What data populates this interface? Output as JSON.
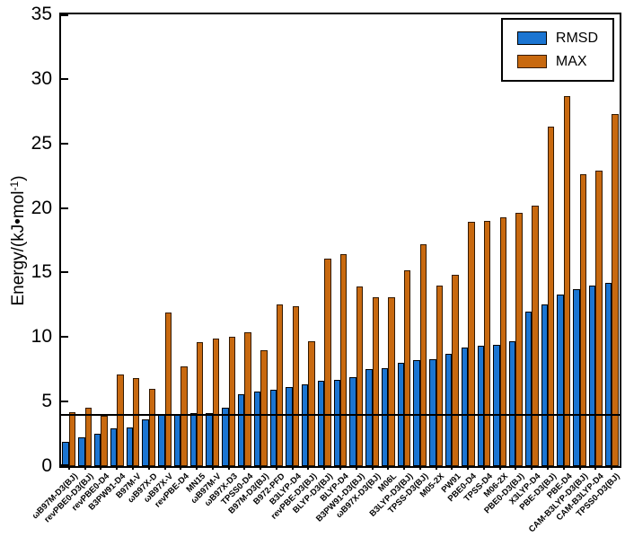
{
  "figure": {
    "ylabel_prefix": "Energy/(kJ•mol",
    "ylabel_sup": "-1",
    "ylabel_suffix": ")"
  },
  "legend": {
    "items": [
      {
        "label": "RMSD",
        "color": "#1B75D2",
        "edge": "#000000"
      },
      {
        "label": "MAX",
        "color": "#C8690F",
        "edge": "#331A00"
      }
    ]
  },
  "chart_data": {
    "type": "bar",
    "title": "",
    "xlabel": "",
    "ylabel": "Energy/(kJ•mol-1)",
    "ylim": [
      0,
      35
    ],
    "yticks": [
      0,
      5,
      10,
      15,
      20,
      25,
      30,
      35
    ],
    "reference_line": 4.0,
    "grid": false,
    "legend_position": "upper right",
    "categories": [
      "ωB97M-D3(BJ)",
      "revPBE0-D3(BJ)",
      "revPBE0-D4",
      "B3PW91-D4",
      "B97M-V",
      "ωB97X-D",
      "ωB97X-V",
      "revPBE-D4",
      "MN15",
      "ωB97M-V",
      "ωB97X-D3",
      "TPSS0-D4",
      "B97M-D3(BJ)",
      "B972-PFD",
      "B3LYP-D4",
      "revPBE-D3(BJ)",
      "BLYP-D3(BJ)",
      "BLYP-D4",
      "B3PW91-D3(BJ)",
      "ωB97X-D3(BJ)",
      "M06L",
      "B3LYP-D3(BJ)",
      "TPSS-D3(BJ)",
      "M05-2X",
      "PW91",
      "PBE0-D4",
      "TPSS-D4",
      "M06-2X",
      "PBE0-D3(BJ)",
      "X3LYP-D4",
      "PBE-D3(BJ)",
      "PBE-D4",
      "CAM-B3LYP-D3(BJ)",
      "CAM-B3LYP-D4",
      "TPSS0-D3(BJ)"
    ],
    "series": [
      {
        "name": "RMSD",
        "color": "#1B75D2",
        "edge": "#000000",
        "values": [
          1.9,
          2.2,
          2.5,
          2.9,
          3.0,
          3.6,
          4.0,
          4.0,
          4.1,
          4.1,
          4.5,
          5.6,
          5.8,
          5.9,
          6.1,
          6.3,
          6.6,
          6.7,
          6.9,
          7.5,
          7.6,
          8.0,
          8.2,
          8.3,
          8.7,
          9.2,
          9.3,
          9.4,
          9.7,
          12.0,
          12.5,
          13.3,
          13.7,
          14.0,
          14.2
        ]
      },
      {
        "name": "MAX",
        "color": "#C8690F",
        "edge": "#331A00",
        "values": [
          4.2,
          4.5,
          3.9,
          7.1,
          6.8,
          6.0,
          11.9,
          7.7,
          9.6,
          9.9,
          10.0,
          10.4,
          9.0,
          12.5,
          12.4,
          9.7,
          16.1,
          16.4,
          13.9,
          13.1,
          13.1,
          15.2,
          17.2,
          14.0,
          14.8,
          18.9,
          19.0,
          19.3,
          19.6,
          20.2,
          26.3,
          28.7,
          22.6,
          22.9,
          27.3
        ]
      }
    ]
  }
}
